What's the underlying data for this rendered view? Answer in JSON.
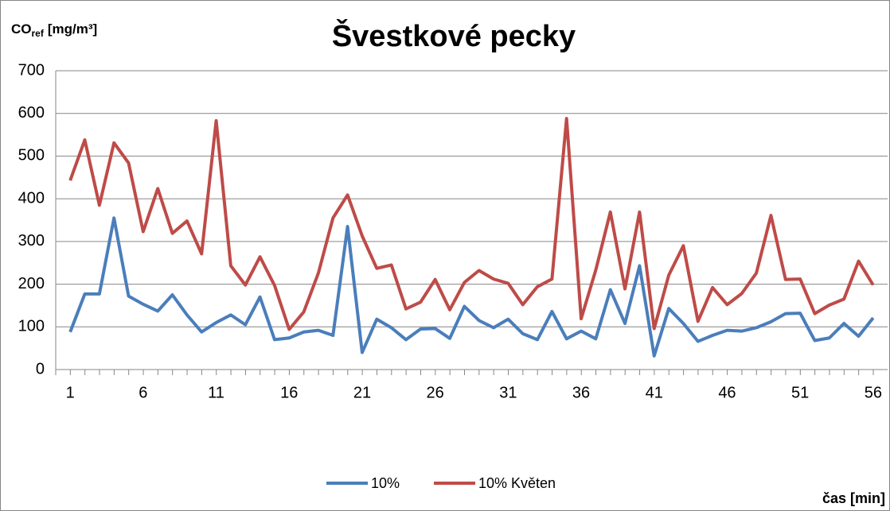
{
  "chart_data": {
    "type": "line",
    "title": "Švestkové pecky",
    "y_label": {
      "main": "CO",
      "sub": "ref",
      "unit": "[mg/m³]"
    },
    "x_label": "čas [min]",
    "categories": [
      "1",
      null,
      null,
      null,
      null,
      "6",
      null,
      null,
      null,
      null,
      "11",
      null,
      null,
      null,
      null,
      "16",
      null,
      null,
      null,
      null,
      "21",
      null,
      null,
      null,
      null,
      "26",
      null,
      null,
      null,
      null,
      "31",
      null,
      null,
      null,
      null,
      "36",
      null,
      null,
      null,
      null,
      "41",
      null,
      null,
      null,
      null,
      "46",
      null,
      null,
      null,
      null,
      "51",
      null,
      null,
      null,
      null,
      "56"
    ],
    "series": [
      {
        "name": "10%",
        "color": "#4a7ebb",
        "values": [
          88,
          177,
          177,
          355,
          172,
          153,
          137,
          175,
          128,
          88,
          110,
          128,
          105,
          170,
          70,
          74,
          88,
          92,
          80,
          335,
          40,
          118,
          98,
          70,
          95,
          96,
          73,
          148,
          115,
          98,
          118,
          84,
          70,
          136,
          72,
          90,
          72,
          187,
          108,
          243,
          32,
          143,
          108,
          66,
          80,
          92,
          90,
          98,
          112,
          131,
          132,
          68,
          74,
          108,
          78,
          121
        ]
      },
      {
        "name": "10% Květen",
        "color": "#be4b48",
        "values": [
          443,
          538,
          385,
          531,
          484,
          323,
          424,
          319,
          348,
          271,
          583,
          243,
          198,
          264,
          197,
          94,
          135,
          226,
          355,
          409,
          313,
          237,
          245,
          142,
          158,
          211,
          140,
          204,
          232,
          212,
          202,
          152,
          194,
          212,
          588,
          119,
          233,
          369,
          189,
          369,
          96,
          221,
          290,
          113,
          192,
          152,
          178,
          226,
          361,
          211,
          212,
          131,
          151,
          165,
          254,
          198
        ]
      }
    ],
    "ylim": [
      0,
      700
    ],
    "yticks": [
      0,
      100,
      200,
      300,
      400,
      500,
      600,
      700
    ],
    "grid": true,
    "legend": "bottom"
  }
}
